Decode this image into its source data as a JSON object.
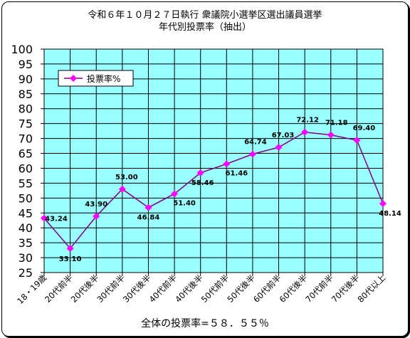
{
  "chart_data": {
    "type": "line",
    "title": "令和６年１０月２７日執行 衆議院小選挙区選出議員選挙",
    "subtitle": "年代別投票率（抽出）",
    "categories": [
      "18・19歳",
      "20代前半",
      "20代後半",
      "30代前半",
      "30代後半",
      "40代前半",
      "40代後半",
      "50代前半",
      "50代後半",
      "60代前半",
      "60代後半",
      "70代前半",
      "70代後半",
      "80代以上"
    ],
    "series": [
      {
        "name": "投票率%",
        "values": [
          43.24,
          33.1,
          43.9,
          53.0,
          46.84,
          51.4,
          58.46,
          61.46,
          64.74,
          67.03,
          72.12,
          71.18,
          69.4,
          48.14
        ],
        "labels": [
          "43.24",
          "33.10",
          "43.90",
          "53.00",
          "46.84",
          "51.40",
          "58.46",
          "61.46",
          "64.74",
          "67.03",
          "72.12",
          "71.18",
          "69.40",
          "48.14"
        ]
      }
    ],
    "ylim": [
      25,
      100
    ],
    "yticks": [
      "100",
      "95",
      "90",
      "85",
      "80",
      "75",
      "70",
      "65",
      "60",
      "55",
      "50",
      "45",
      "40",
      "35",
      "30",
      "25"
    ],
    "grid": true,
    "legend_position": "top-left",
    "footer": "全体の投票率=５８．５５％",
    "colors": {
      "plot_background": "#99ffff",
      "line": "#800080",
      "marker": "#ff00ff",
      "grid": "#000000"
    }
  }
}
